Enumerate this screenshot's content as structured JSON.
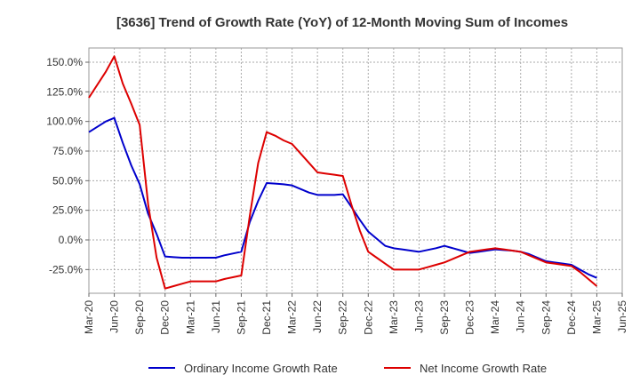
{
  "chart_data": {
    "type": "line",
    "title": "[3636]  Trend of Growth Rate (YoY) of 12-Month Moving Sum of Incomes",
    "x": [
      "Mar-20",
      "Jun-20",
      "Sep-20",
      "Dec-20",
      "Mar-21",
      "Jun-21",
      "Sep-21",
      "Dec-21",
      "Mar-22",
      "Jun-22",
      "Sep-22",
      "Dec-22",
      "Mar-23",
      "Jun-23",
      "Sep-23",
      "Dec-23",
      "Mar-24",
      "Jun-24",
      "Sep-24",
      "Dec-24",
      "Mar-25",
      "Jun-25"
    ],
    "xlabel": "",
    "ylabel": "",
    "ylim": [
      -45,
      162
    ],
    "yticks": [
      150,
      125,
      100,
      75,
      50,
      25,
      0,
      -25
    ],
    "ytick_labels": [
      "150.0%",
      "125.0%",
      "100.0%",
      "75.0%",
      "50.0%",
      "25.0%",
      "0.0%",
      "-25.0%"
    ],
    "grid": true,
    "legend_position": "bottom",
    "series": [
      {
        "name": "Ordinary Income Growth Rate",
        "color": "#0000cc",
        "x": [
          "Mar-20",
          "May-20",
          "Jun-20",
          "Jul-20",
          "Aug-20",
          "Sep-20",
          "Oct-20",
          "Nov-20",
          "Dec-20",
          "Jan-21",
          "Feb-21",
          "Mar-21",
          "Apr-21",
          "May-21",
          "Jun-21",
          "Jul-21",
          "Aug-21",
          "Sep-21",
          "Oct-21",
          "Nov-21",
          "Dec-21",
          "Jan-22",
          "Feb-22",
          "Mar-22",
          "Apr-22",
          "May-22",
          "Jun-22",
          "Jul-22",
          "Aug-22",
          "Sep-22",
          "Oct-22",
          "Nov-22",
          "Dec-22",
          "Jan-23",
          "Feb-23",
          "Mar-23",
          "Apr-23",
          "May-23",
          "Jun-23",
          "Jul-23",
          "Aug-23",
          "Sep-23",
          "Oct-23",
          "Nov-23",
          "Dec-23",
          "Jan-24",
          "Feb-24",
          "Mar-24",
          "Apr-24",
          "May-24",
          "Jun-24",
          "Jul-24",
          "Aug-24",
          "Sep-24",
          "Oct-24",
          "Nov-24",
          "Dec-24",
          "Jan-25",
          "Feb-25",
          "Mar-25"
        ],
        "values": [
          91,
          100,
          103,
          82,
          63,
          47,
          22,
          5,
          -14,
          -14.5,
          -15,
          -15,
          -15,
          -15,
          -15,
          -13,
          -11.5,
          -10,
          15,
          33,
          48,
          47.5,
          47,
          46,
          43,
          40,
          38,
          38,
          38,
          38.5,
          28,
          17,
          7,
          1,
          -5,
          -7,
          -8,
          -9,
          -10,
          -8.5,
          -7,
          -5,
          -7,
          -9,
          -11,
          -10,
          -9,
          -8,
          -8.5,
          -9,
          -10,
          -12,
          -15,
          -18,
          -19,
          -20,
          -21,
          -25,
          -29,
          -32
        ]
      },
      {
        "name": "Net Income Growth Rate",
        "color": "#dd0000",
        "x": [
          "Mar-20",
          "May-20",
          "Jun-20",
          "Jul-20",
          "Aug-20",
          "Sep-20",
          "Oct-20",
          "Nov-20",
          "Dec-20",
          "Jan-21",
          "Feb-21",
          "Mar-21",
          "Apr-21",
          "May-21",
          "Jun-21",
          "Jul-21",
          "Aug-21",
          "Sep-21",
          "Oct-21",
          "Nov-21",
          "Dec-21",
          "Jan-22",
          "Feb-22",
          "Mar-22",
          "Apr-22",
          "May-22",
          "Jun-22",
          "Jul-22",
          "Aug-22",
          "Sep-22",
          "Oct-22",
          "Nov-22",
          "Dec-22",
          "Jan-23",
          "Feb-23",
          "Mar-23",
          "Apr-23",
          "May-23",
          "Jun-23",
          "Jul-23",
          "Aug-23",
          "Sep-23",
          "Oct-23",
          "Nov-23",
          "Dec-23",
          "Jan-24",
          "Feb-24",
          "Mar-24",
          "Apr-24",
          "May-24",
          "Jun-24",
          "Jul-24",
          "Aug-24",
          "Sep-24",
          "Oct-24",
          "Nov-24",
          "Dec-24",
          "Jan-25",
          "Feb-25",
          "Mar-25"
        ],
        "values": [
          120,
          142,
          155,
          132,
          115,
          97,
          30,
          -15,
          -41,
          -39,
          -37,
          -35,
          -35,
          -35,
          -35,
          -33,
          -31.5,
          -30,
          20,
          65,
          91,
          88,
          84,
          81,
          73,
          65,
          57,
          56,
          55,
          54,
          30,
          8,
          -10,
          -15,
          -20,
          -25,
          -25,
          -25,
          -25,
          -23,
          -21,
          -19,
          -16,
          -13,
          -10,
          -9,
          -8,
          -7,
          -8,
          -9,
          -10,
          -13,
          -16,
          -19,
          -20,
          -21,
          -22,
          -27,
          -33,
          -39
        ]
      }
    ]
  }
}
